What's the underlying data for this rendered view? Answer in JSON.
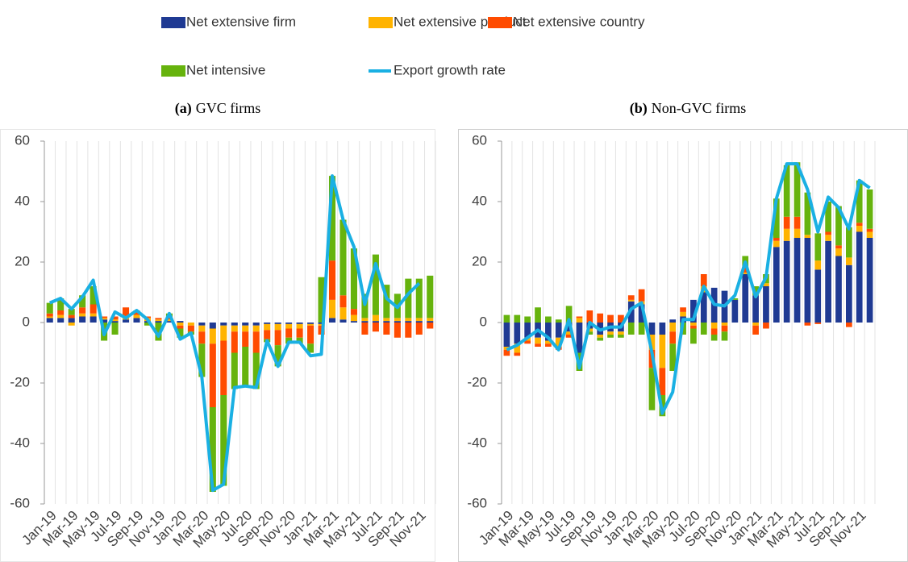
{
  "chart_data": [
    {
      "type": "bar",
      "stacked": true,
      "panel_label": "(a)",
      "title": "GVC firms",
      "categories": [
        "Jan-19",
        null,
        "Mar-19",
        null,
        "May-19",
        null,
        "Jul-19",
        null,
        "Sep-19",
        null,
        "Nov-19",
        null,
        "Jan-20",
        null,
        "Mar-20",
        null,
        "May-20",
        null,
        "Jul-20",
        null,
        "Sep-20",
        null,
        "Nov-20",
        null,
        "Jan-21",
        null,
        "Mar-21",
        null,
        "May-21",
        null,
        "Jul-21",
        null,
        "Sep-21",
        null,
        "Nov-21",
        null
      ],
      "ylim": [
        -60,
        60
      ],
      "yticks": [
        -60,
        -40,
        -20,
        0,
        20,
        40,
        60
      ],
      "grid": true,
      "series": [
        {
          "name": "Net extensive firm",
          "color": "#1f3a93",
          "values": [
            1.5,
            1.5,
            1.5,
            2,
            2,
            1,
            0.5,
            1,
            1.5,
            0.5,
            0.5,
            0.5,
            0.5,
            0,
            -1,
            -2,
            -1,
            -1,
            -1,
            -1,
            -0.5,
            -0.5,
            -0.5,
            -0.5,
            -0.5,
            -0.5,
            1.5,
            1,
            0.5,
            0.5,
            0.5,
            0.5,
            0.5,
            0.5,
            0.5,
            0.5
          ]
        },
        {
          "name": "Net extensive product",
          "color": "#ffb300",
          "values": [
            0.5,
            1,
            -1,
            1,
            1,
            0.5,
            0.5,
            0.5,
            1,
            1,
            0.5,
            0.5,
            -1,
            -1,
            -2,
            -5,
            -5,
            -2,
            -2,
            -2,
            -2,
            -2,
            -1.5,
            -1.5,
            -0.5,
            -0.5,
            6,
            4,
            2,
            1,
            2,
            1,
            1,
            1,
            1,
            1
          ]
        },
        {
          "name": "Net extensive country",
          "color": "#ff4b00",
          "values": [
            1,
            1.5,
            1,
            2,
            3,
            0.5,
            1,
            3.5,
            1,
            0.5,
            0.5,
            1,
            -1,
            -2,
            -4,
            -21,
            -18,
            -7,
            -5,
            -7,
            -3,
            -5,
            -3,
            -3,
            -6,
            -3,
            13,
            4,
            2,
            -4,
            -3,
            -4,
            -5,
            -5,
            -4,
            -2
          ]
        },
        {
          "name": "Net intensive",
          "color": "#66b30d",
          "values": [
            3.5,
            4,
            2,
            4,
            6,
            -6,
            -4,
            0,
            0.5,
            -1,
            -6,
            1,
            -3,
            -1,
            -11,
            -28,
            -30,
            -12,
            -13,
            -12,
            -1,
            -7,
            -2,
            -2,
            -3,
            15,
            28,
            25,
            20,
            8,
            20,
            11,
            8,
            13,
            13,
            14
          ]
        },
        {
          "name": "Export growth rate",
          "type": "line",
          "color": "#1ab0e3",
          "values": [
            6.5,
            8,
            4.5,
            8.5,
            14,
            -4,
            3.5,
            1.5,
            4,
            1,
            -4.5,
            3,
            -5.5,
            -3.5,
            -18,
            -55.5,
            -53.5,
            -21.5,
            -21,
            -21.5,
            -6,
            -14.5,
            -6.5,
            -6.5,
            -11,
            -10.5,
            48.5,
            34,
            25,
            6,
            19.5,
            8,
            5,
            9.5,
            13,
            null
          ]
        }
      ]
    },
    {
      "type": "bar",
      "stacked": true,
      "panel_label": "(b)",
      "title": "Non-GVC firms",
      "categories": [
        "Jan-19",
        null,
        "Mar-19",
        null,
        "May-19",
        null,
        "Jul-19",
        null,
        "Sep-19",
        null,
        "Nov-19",
        null,
        "Jan-20",
        null,
        "Mar-20",
        null,
        "May-20",
        null,
        "Jul-20",
        null,
        "Sep-20",
        null,
        "Nov-20",
        null,
        "Jan-21",
        null,
        "Mar-21",
        null,
        "May-21",
        null,
        "Jul-21",
        null,
        "Sep-21",
        null,
        "Nov-21",
        null
      ],
      "ylim": [
        -60,
        60
      ],
      "yticks": [
        -60,
        -40,
        -20,
        0,
        20,
        40,
        60
      ],
      "grid": true,
      "series": [
        {
          "name": "Net extensive firm",
          "color": "#1f3a93",
          "values": [
            -8,
            -7,
            -5,
            -5,
            -6,
            -5,
            -3,
            -10,
            -2,
            -4,
            -3,
            -3,
            7,
            6,
            -4,
            -4,
            1,
            2,
            7.5,
            10,
            11.5,
            10.5,
            7.5,
            16,
            9,
            12,
            25,
            27,
            28,
            28,
            17.5,
            27,
            22,
            19,
            30,
            28
          ]
        },
        {
          "name": "Net extensive product",
          "color": "#ffb300",
          "values": [
            -1,
            -3,
            -1,
            -2,
            -1,
            -3,
            -1,
            1.5,
            -1,
            -1,
            -1,
            -1,
            0.5,
            1,
            -5,
            -11,
            -3,
            1.5,
            -1,
            2,
            -2,
            -1,
            0,
            0.5,
            -1,
            1,
            2,
            4,
            3,
            1,
            3,
            2,
            2.5,
            2.5,
            2,
            2
          ]
        },
        {
          "name": "Net extensive country",
          "color": "#ff4b00",
          "values": [
            -2,
            -1,
            -1,
            -1,
            -1,
            -1,
            -1,
            0.5,
            4,
            3,
            2.5,
            2.5,
            1.5,
            4,
            -6,
            -9,
            -4,
            1.5,
            -1,
            4,
            -2,
            -2,
            0,
            1.5,
            -3,
            -2,
            1,
            4,
            4,
            -1,
            -0.5,
            1,
            1,
            -1.5,
            1,
            1
          ]
        },
        {
          "name": "Net intensive",
          "color": "#66b30d",
          "values": [
            2.5,
            2.5,
            2,
            5,
            2,
            1,
            5.5,
            -6,
            -1,
            -1,
            -1,
            -1,
            -4,
            -4,
            -14,
            -7,
            -9,
            -4,
            -5,
            -4,
            -2,
            -3,
            0.5,
            4,
            3,
            3,
            13,
            17,
            18,
            14,
            9,
            10,
            13,
            10,
            14,
            13
          ]
        },
        {
          "name": "Export growth rate",
          "type": "line",
          "color": "#1ab0e3",
          "values": [
            -9,
            -7.5,
            -5,
            -2.5,
            -5,
            -9,
            1,
            -15,
            0,
            -2.5,
            -1.5,
            -1.5,
            4.5,
            6.5,
            -10,
            -30,
            -23,
            1,
            1,
            12,
            6,
            5.5,
            9,
            20,
            8.5,
            15,
            41,
            52.5,
            52.5,
            44,
            30,
            41.5,
            38,
            31,
            47,
            44.5
          ]
        }
      ]
    }
  ]
}
